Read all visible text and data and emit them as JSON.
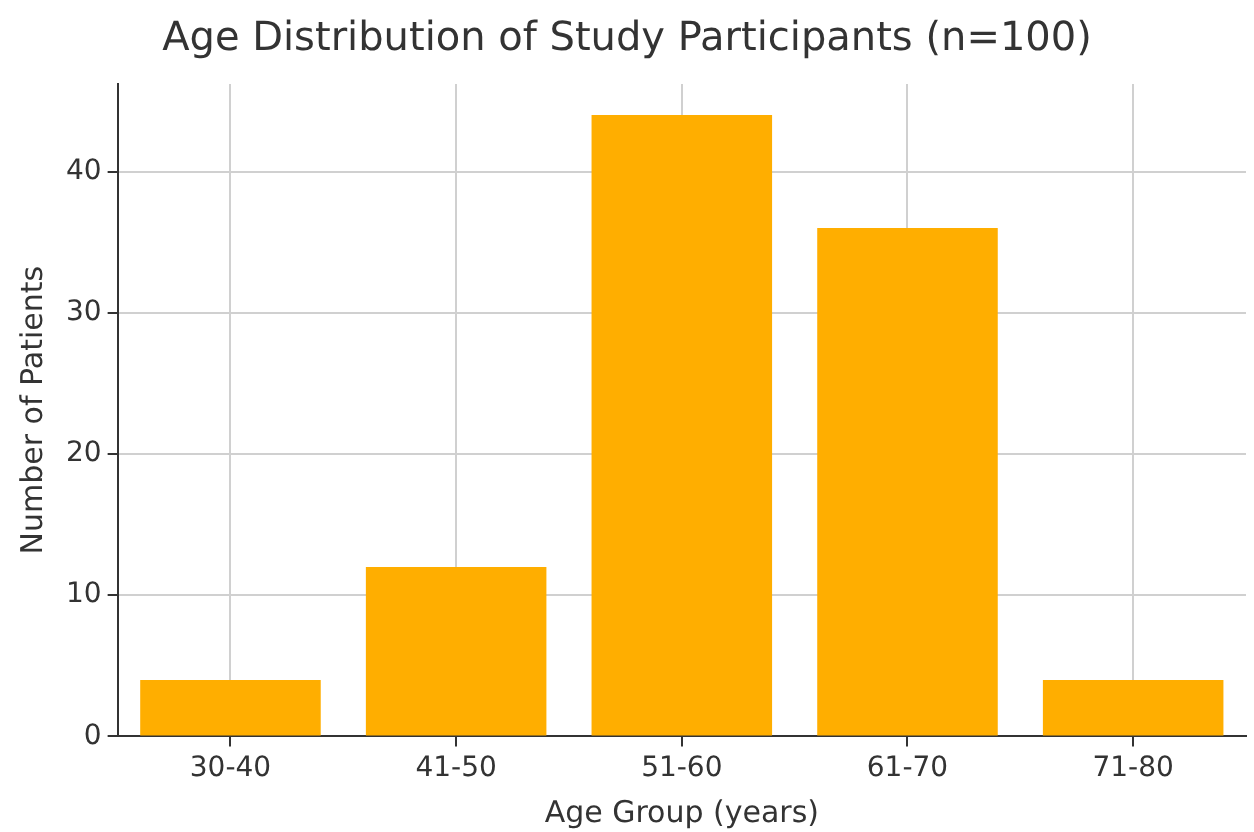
{
  "chart_data": {
    "type": "bar",
    "title": "Age Distribution of Study Participants (n=100)",
    "xlabel": "Age Group (years)",
    "ylabel": "Number of Patients",
    "categories": [
      "30-40",
      "41-50",
      "51-60",
      "61-70",
      "71-80"
    ],
    "values": [
      4,
      12,
      44,
      36,
      4
    ],
    "color": "#ffae00",
    "ylim": [
      0,
      46.2
    ],
    "yticks": [
      0,
      10,
      20,
      30,
      40
    ],
    "grid": true
  }
}
